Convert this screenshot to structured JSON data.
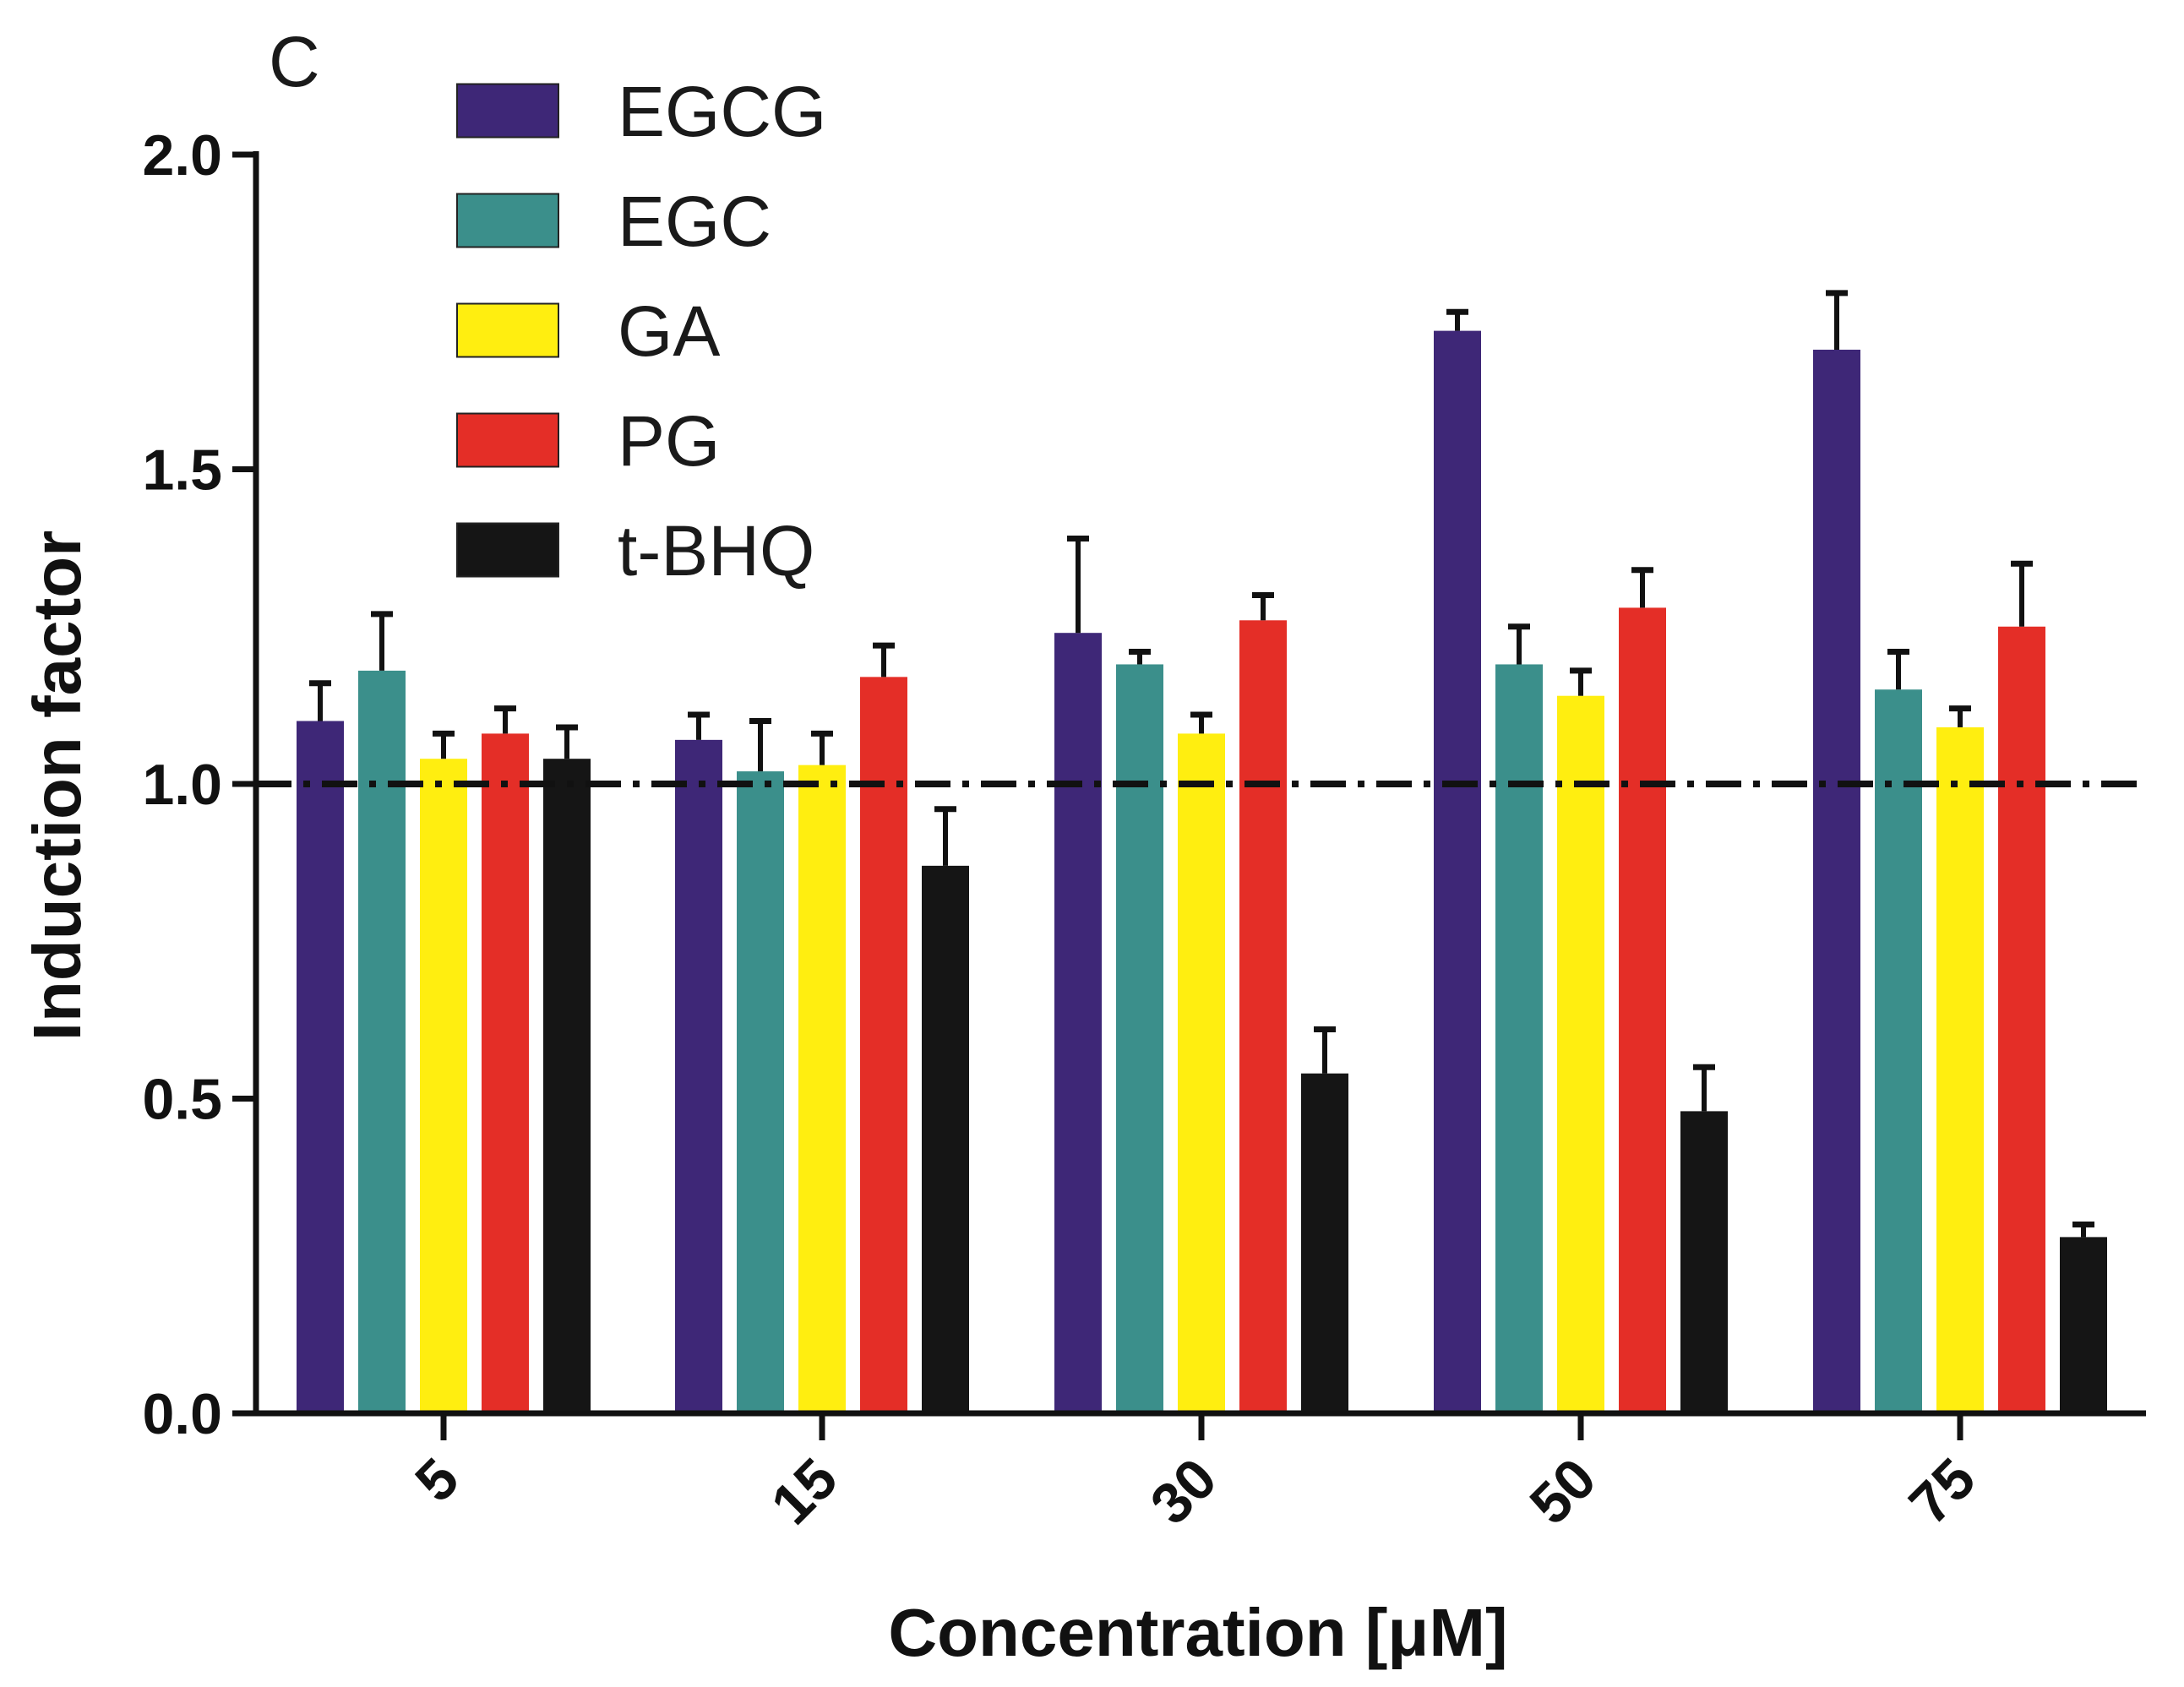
{
  "chart_data": {
    "type": "bar",
    "panel_label": "C",
    "title": "",
    "xlabel": "Concentration [μM]",
    "ylabel": "Induction factor",
    "ylim": [
      0,
      2.0
    ],
    "yticks": [
      0.0,
      0.5,
      1.0,
      1.5,
      2.0
    ],
    "ytick_labels": [
      "0.0",
      "0.5",
      "1.0",
      "1.5",
      "2.0"
    ],
    "categories": [
      "5",
      "15",
      "30",
      "50",
      "75"
    ],
    "reference_line": {
      "value": 1.0,
      "style": "dash-dot"
    },
    "legend_position": "top-left",
    "grid": false,
    "error_bars": "upper",
    "series": [
      {
        "name": "EGCG",
        "color": "#3e2777",
        "values": [
          1.1,
          1.07,
          1.24,
          1.72,
          1.69
        ],
        "errors": [
          0.06,
          0.04,
          0.15,
          0.03,
          0.09
        ]
      },
      {
        "name": "EGC",
        "color": "#3b8f8b",
        "values": [
          1.18,
          1.02,
          1.19,
          1.19,
          1.15
        ],
        "errors": [
          0.09,
          0.08,
          0.02,
          0.06,
          0.06
        ]
      },
      {
        "name": "GA",
        "color": "#ffee10",
        "values": [
          1.04,
          1.03,
          1.08,
          1.14,
          1.09
        ],
        "errors": [
          0.04,
          0.05,
          0.03,
          0.04,
          0.03
        ]
      },
      {
        "name": "PG",
        "color": "#e42e27",
        "values": [
          1.08,
          1.17,
          1.26,
          1.28,
          1.25
        ],
        "errors": [
          0.04,
          0.05,
          0.04,
          0.06,
          0.1
        ]
      },
      {
        "name": "t-BHQ",
        "color": "#151515",
        "values": [
          1.04,
          0.87,
          0.54,
          0.48,
          0.28
        ],
        "errors": [
          0.05,
          0.09,
          0.07,
          0.07,
          0.02
        ]
      }
    ]
  }
}
